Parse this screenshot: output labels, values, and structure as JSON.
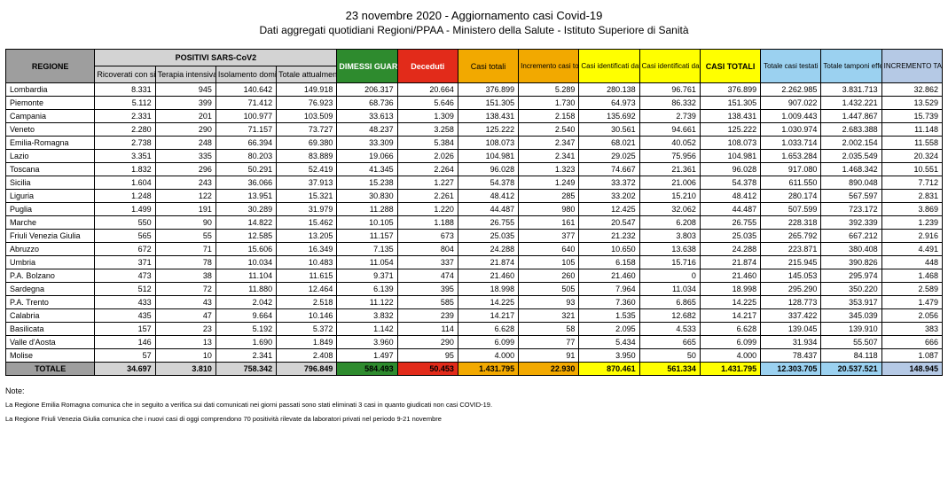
{
  "title": "23 novembre 2020 - Aggiornamento casi Covid-19",
  "subtitle": "Dati aggregati quotidiani Regioni/PPAA - Ministero della Salute - Istituto Superiore di Sanità",
  "headers": {
    "region": "REGIONE",
    "pos_group": "POSITIVI SARS-CoV2",
    "ric_sint": "Ricoverati con sintomi",
    "terapia": "Terapia intensiva",
    "isol": "Isolamento domiciliare",
    "tot_pos": "Totale attualmente positivi",
    "dimessi": "DIMESSI GUARITI",
    "deceduti": "Deceduti",
    "casi_tot": "Casi totali",
    "incr_casi": "Incremento casi totali (rispetto al giorno precedente)",
    "sospetto": "Casi identificati dal sospetto diagnostico",
    "screening": "Casi identificati da attività di screening",
    "casi_totali2": "CASI TOTALI",
    "testati": "Totale casi testati",
    "tamponi": "Totale tamponi effettuati",
    "incr_tamp": "INCREMENTO TAMPONI"
  },
  "rows": [
    {
      "r": "Lombardia",
      "v": [
        "8.331",
        "945",
        "140.642",
        "149.918",
        "206.317",
        "20.664",
        "376.899",
        "5.289",
        "280.138",
        "96.761",
        "376.899",
        "2.262.985",
        "3.831.713",
        "32.862"
      ]
    },
    {
      "r": "Piemonte",
      "v": [
        "5.112",
        "399",
        "71.412",
        "76.923",
        "68.736",
        "5.646",
        "151.305",
        "1.730",
        "64.973",
        "86.332",
        "151.305",
        "907.022",
        "1.432.221",
        "13.529"
      ]
    },
    {
      "r": "Campania",
      "v": [
        "2.331",
        "201",
        "100.977",
        "103.509",
        "33.613",
        "1.309",
        "138.431",
        "2.158",
        "135.692",
        "2.739",
        "138.431",
        "1.009.443",
        "1.447.867",
        "15.739"
      ]
    },
    {
      "r": "Veneto",
      "v": [
        "2.280",
        "290",
        "71.157",
        "73.727",
        "48.237",
        "3.258",
        "125.222",
        "2.540",
        "30.561",
        "94.661",
        "125.222",
        "1.030.974",
        "2.683.388",
        "11.148"
      ]
    },
    {
      "r": "Emilia-Romagna",
      "v": [
        "2.738",
        "248",
        "66.394",
        "69.380",
        "33.309",
        "5.384",
        "108.073",
        "2.347",
        "68.021",
        "40.052",
        "108.073",
        "1.033.714",
        "2.002.154",
        "11.558"
      ]
    },
    {
      "r": "Lazio",
      "v": [
        "3.351",
        "335",
        "80.203",
        "83.889",
        "19.066",
        "2.026",
        "104.981",
        "2.341",
        "29.025",
        "75.956",
        "104.981",
        "1.653.284",
        "2.035.549",
        "20.324"
      ]
    },
    {
      "r": "Toscana",
      "v": [
        "1.832",
        "296",
        "50.291",
        "52.419",
        "41.345",
        "2.264",
        "96.028",
        "1.323",
        "74.667",
        "21.361",
        "96.028",
        "917.080",
        "1.468.342",
        "10.551"
      ]
    },
    {
      "r": "Sicilia",
      "v": [
        "1.604",
        "243",
        "36.066",
        "37.913",
        "15.238",
        "1.227",
        "54.378",
        "1.249",
        "33.372",
        "21.006",
        "54.378",
        "611.550",
        "890.048",
        "7.712"
      ]
    },
    {
      "r": "Liguria",
      "v": [
        "1.248",
        "122",
        "13.951",
        "15.321",
        "30.830",
        "2.261",
        "48.412",
        "285",
        "33.202",
        "15.210",
        "48.412",
        "280.174",
        "567.597",
        "2.831"
      ]
    },
    {
      "r": "Puglia",
      "v": [
        "1.499",
        "191",
        "30.289",
        "31.979",
        "11.288",
        "1.220",
        "44.487",
        "980",
        "12.425",
        "32.062",
        "44.487",
        "507.599",
        "723.172",
        "3.869"
      ]
    },
    {
      "r": "Marche",
      "v": [
        "550",
        "90",
        "14.822",
        "15.462",
        "10.105",
        "1.188",
        "26.755",
        "161",
        "20.547",
        "6.208",
        "26.755",
        "228.318",
        "392.339",
        "1.239"
      ]
    },
    {
      "r": "Friuli Venezia Giulia",
      "v": [
        "565",
        "55",
        "12.585",
        "13.205",
        "11.157",
        "673",
        "25.035",
        "377",
        "21.232",
        "3.803",
        "25.035",
        "265.792",
        "667.212",
        "2.916"
      ]
    },
    {
      "r": "Abruzzo",
      "v": [
        "672",
        "71",
        "15.606",
        "16.349",
        "7.135",
        "804",
        "24.288",
        "640",
        "10.650",
        "13.638",
        "24.288",
        "223.871",
        "380.408",
        "4.491"
      ]
    },
    {
      "r": "Umbria",
      "v": [
        "371",
        "78",
        "10.034",
        "10.483",
        "11.054",
        "337",
        "21.874",
        "105",
        "6.158",
        "15.716",
        "21.874",
        "215.945",
        "390.826",
        "448"
      ]
    },
    {
      "r": "P.A. Bolzano",
      "v": [
        "473",
        "38",
        "11.104",
        "11.615",
        "9.371",
        "474",
        "21.460",
        "260",
        "21.460",
        "0",
        "21.460",
        "145.053",
        "295.974",
        "1.468"
      ]
    },
    {
      "r": "Sardegna",
      "v": [
        "512",
        "72",
        "11.880",
        "12.464",
        "6.139",
        "395",
        "18.998",
        "505",
        "7.964",
        "11.034",
        "18.998",
        "295.290",
        "350.220",
        "2.589"
      ]
    },
    {
      "r": "P.A. Trento",
      "v": [
        "433",
        "43",
        "2.042",
        "2.518",
        "11.122",
        "585",
        "14.225",
        "93",
        "7.360",
        "6.865",
        "14.225",
        "128.773",
        "353.917",
        "1.479"
      ]
    },
    {
      "r": "Calabria",
      "v": [
        "435",
        "47",
        "9.664",
        "10.146",
        "3.832",
        "239",
        "14.217",
        "321",
        "1.535",
        "12.682",
        "14.217",
        "337.422",
        "345.039",
        "2.056"
      ]
    },
    {
      "r": "Basilicata",
      "v": [
        "157",
        "23",
        "5.192",
        "5.372",
        "1.142",
        "114",
        "6.628",
        "58",
        "2.095",
        "4.533",
        "6.628",
        "139.045",
        "139.910",
        "383"
      ]
    },
    {
      "r": "Valle d'Aosta",
      "v": [
        "146",
        "13",
        "1.690",
        "1.849",
        "3.960",
        "290",
        "6.099",
        "77",
        "5.434",
        "665",
        "6.099",
        "31.934",
        "55.507",
        "666"
      ]
    },
    {
      "r": "Molise",
      "v": [
        "57",
        "10",
        "2.341",
        "2.408",
        "1.497",
        "95",
        "4.000",
        "91",
        "3.950",
        "50",
        "4.000",
        "78.437",
        "84.118",
        "1.087"
      ]
    }
  ],
  "total": {
    "label": "TOTALE",
    "v": [
      "34.697",
      "3.810",
      "758.342",
      "796.849",
      "584.493",
      "50.453",
      "1.431.795",
      "22.930",
      "870.461",
      "561.334",
      "1.431.795",
      "12.303.705",
      "20.537.521",
      "148.945"
    ]
  },
  "notes_label": "Note:",
  "note1": "La Regione Emilia Romagna comunica che in seguito a verifica sui dati comunicati nei giorni passati sono stati eliminati 3 casi in quanto giudicati non casi COVID-19.",
  "note2": "La Regione Friuli Venezia Giulia comunica che i nuovi casi di oggi comprendono 70 positività rilevate da laboratori privati nel periodo 9-21 novembre",
  "colors": {
    "grey": "#9e9e9e",
    "lgrey": "#d3d3d3",
    "green": "#2e8b2e",
    "red": "#e22b1a",
    "orange": "#f2a900",
    "yellow": "#ffff00",
    "lblue": "#9bd1f0",
    "lblue2": "#b5c9e5"
  }
}
